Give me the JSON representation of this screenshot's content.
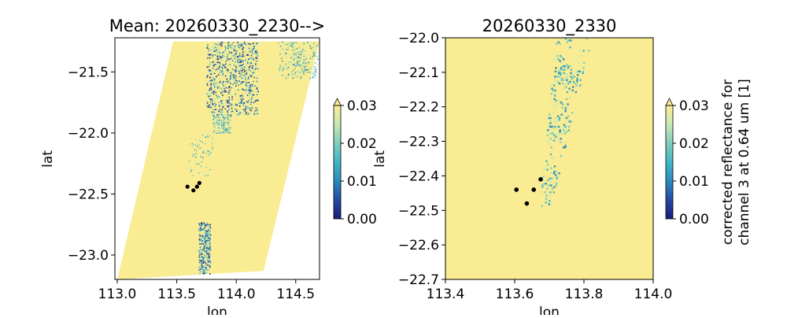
{
  "chart_data": [
    {
      "type": "heatmap",
      "title": "Mean: 20260330_2230-->",
      "xlabel": "lon",
      "ylabel": "lat",
      "xlim": [
        112.98,
        114.7
      ],
      "ylim": [
        -23.2,
        -21.22
      ],
      "xticks": [
        "113.0",
        "113.5",
        "114.0",
        "114.5"
      ],
      "xtick_values": [
        113.0,
        113.5,
        114.0,
        114.5
      ],
      "yticks": [
        "−21.5",
        "−22.0",
        "−22.5",
        "−23.0"
      ],
      "ytick_values": [
        -21.5,
        -22.0,
        -22.5,
        -23.0
      ],
      "swath_corners": [
        [
          113.47,
          -21.25
        ],
        [
          114.7,
          -21.25
        ],
        [
          114.23,
          -23.13
        ],
        [
          113.0,
          -23.2
        ]
      ],
      "points": [
        [
          113.59,
          -22.44
        ],
        [
          113.64,
          -22.47
        ],
        [
          113.67,
          -22.44
        ],
        [
          113.69,
          -22.41
        ]
      ],
      "background_color": "#f9ec93",
      "colorbar": {
        "min": 0.0,
        "max": 0.03,
        "ticks": [
          "0.00",
          "0.01",
          "0.02",
          "0.03"
        ],
        "tick_values": [
          0.0,
          0.01,
          0.02,
          0.03
        ],
        "extend": "max",
        "label": "",
        "colors": [
          "#1b1b7c",
          "#254aa6",
          "#2a8bbd",
          "#41b6c4",
          "#7fcdbb",
          "#c7e9b4",
          "#f9ec93"
        ]
      }
    },
    {
      "type": "heatmap",
      "title": "20260330_2330",
      "xlabel": "lon",
      "ylabel": "lat",
      "xlim": [
        113.4,
        114.0
      ],
      "ylim": [
        -22.7,
        -22.0
      ],
      "xticks": [
        "113.4",
        "113.6",
        "113.8",
        "114.0"
      ],
      "xtick_values": [
        113.4,
        113.6,
        113.8,
        114.0
      ],
      "yticks": [
        "−22.0",
        "−22.1",
        "−22.2",
        "−22.3",
        "−22.4",
        "−22.5",
        "−22.6",
        "−22.7"
      ],
      "ytick_values": [
        -22.0,
        -22.1,
        -22.2,
        -22.3,
        -22.4,
        -22.5,
        -22.6,
        -22.7
      ],
      "points": [
        [
          113.605,
          -22.44
        ],
        [
          113.655,
          -22.44
        ],
        [
          113.675,
          -22.41
        ],
        [
          113.635,
          -22.48
        ]
      ],
      "background_color": "#f9ec93",
      "colorbar": {
        "min": 0.0,
        "max": 0.03,
        "ticks": [
          "0.00",
          "0.01",
          "0.02",
          "0.03"
        ],
        "tick_values": [
          0.0,
          0.01,
          0.02,
          0.03
        ],
        "extend": "max",
        "label": [
          "corrected reflectance for",
          "channel 3 at 0.64 um [1]"
        ],
        "colors": [
          "#1b1b7c",
          "#254aa6",
          "#2a8bbd",
          "#41b6c4",
          "#7fcdbb",
          "#c7e9b4",
          "#f9ec93"
        ]
      }
    }
  ]
}
